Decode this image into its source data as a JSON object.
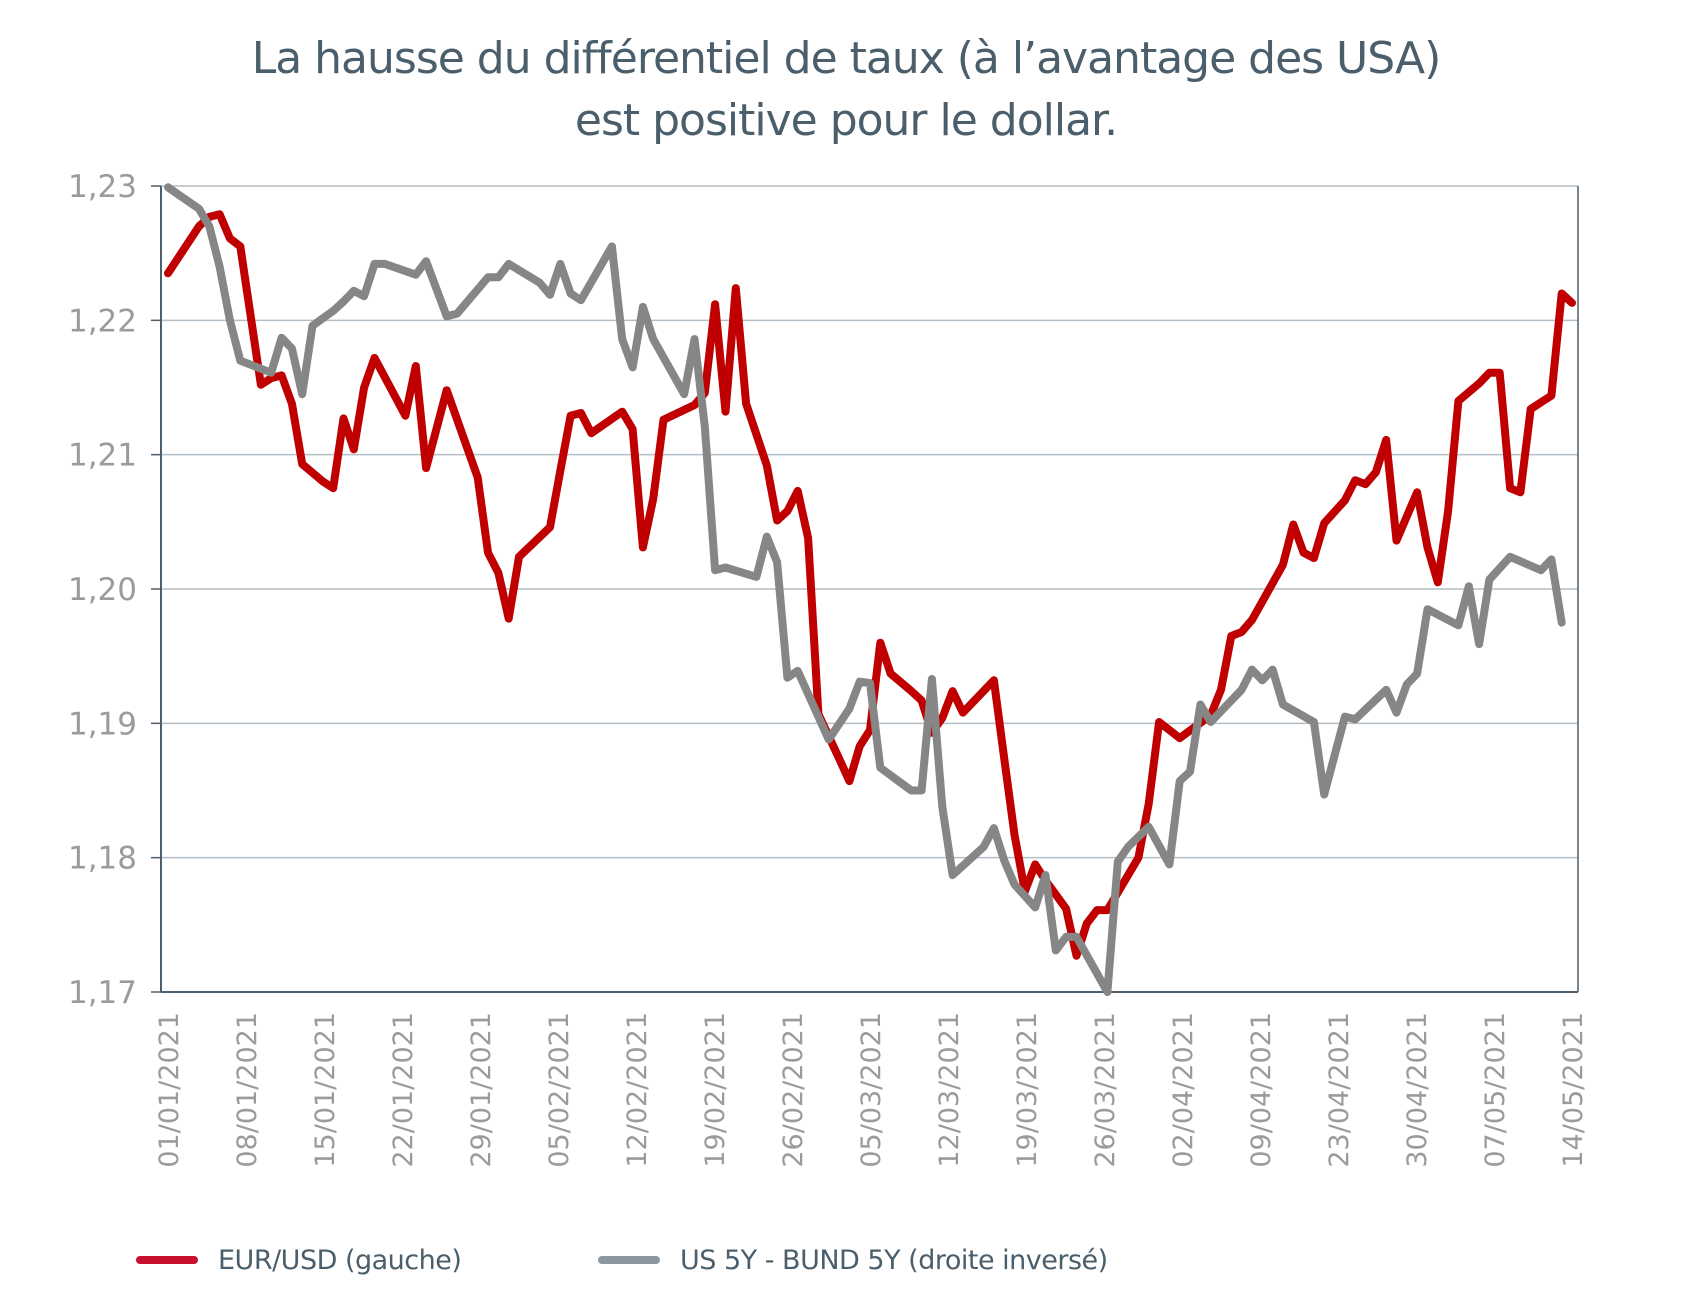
{
  "chart_data": {
    "type": "line",
    "title": "La hausse du différentiel de taux (à l’avantage des USA) est positive pour le dollar.",
    "title_lines": [
      "La hausse du différentiel de taux (à l’avantage des USA)",
      "est positive pour le dollar."
    ],
    "xlabel": "",
    "ylabel": "",
    "ylim": [
      1.17,
      1.23
    ],
    "y_ticks": [
      "1,23",
      "1,22",
      "1,21",
      "1,20",
      "1,19",
      "1,18",
      "1,17"
    ],
    "y_tick_values": [
      1.23,
      1.22,
      1.21,
      1.2,
      1.19,
      1.18,
      1.17
    ],
    "x_tick_labels": [
      "01/01/2021",
      "08/01/2021",
      "15/01/2021",
      "22/01/2021",
      "29/01/2021",
      "05/02/2021",
      "12/02/2021",
      "19/02/2021",
      "26/02/2021",
      "05/03/2021",
      "12/03/2021",
      "19/03/2021",
      "26/03/2021",
      "02/04/2021",
      "09/04/2021",
      "23/04/2021",
      "30/04/2021",
      "07/05/2021",
      "14/05/2021"
    ],
    "x_range_days": [
      0,
      133
    ],
    "grid": true,
    "legend_position": "bottom",
    "series": [
      {
        "name": "EUR/USD (gauche)",
        "color": "#c00000",
        "axis": "left",
        "points": [
          [
            0,
            1.2235
          ],
          [
            3,
            1.227
          ],
          [
            4,
            1.2277
          ],
          [
            5,
            1.2279
          ],
          [
            6,
            1.2261
          ],
          [
            7,
            1.2255
          ],
          [
            9,
            1.2152
          ],
          [
            10,
            1.2157
          ],
          [
            11,
            1.2159
          ],
          [
            12,
            1.2138
          ],
          [
            13,
            1.2093
          ],
          [
            15,
            1.208
          ],
          [
            16,
            1.2075
          ],
          [
            17,
            1.2127
          ],
          [
            18,
            1.2104
          ],
          [
            19,
            1.215
          ],
          [
            20,
            1.2172
          ],
          [
            23,
            1.2129
          ],
          [
            24,
            1.2166
          ],
          [
            25,
            1.209
          ],
          [
            27,
            1.2148
          ],
          [
            30,
            1.2083
          ],
          [
            31,
            1.2027
          ],
          [
            32,
            1.2012
          ],
          [
            33,
            1.1978
          ],
          [
            34,
            1.2024
          ],
          [
            37,
            1.2046
          ],
          [
            38,
            1.2088
          ],
          [
            39,
            1.2129
          ],
          [
            40,
            1.2131
          ],
          [
            41,
            1.2116
          ],
          [
            44,
            1.2132
          ],
          [
            45,
            1.2119
          ],
          [
            46,
            1.2031
          ],
          [
            47,
            1.2067
          ],
          [
            48,
            1.2126
          ],
          [
            51,
            1.2137
          ],
          [
            52,
            1.2146
          ],
          [
            53,
            1.2212
          ],
          [
            54,
            1.2132
          ],
          [
            55,
            1.2224
          ],
          [
            56,
            1.2138
          ],
          [
            58,
            1.2092
          ],
          [
            59,
            1.2051
          ],
          [
            60,
            1.2058
          ],
          [
            61,
            1.2073
          ],
          [
            62,
            1.2038
          ],
          [
            63,
            1.1907
          ],
          [
            65,
            1.1874
          ],
          [
            66,
            1.1857
          ],
          [
            67,
            1.1883
          ],
          [
            68,
            1.1895
          ],
          [
            69,
            1.196
          ],
          [
            70,
            1.1937
          ],
          [
            72,
            1.1924
          ],
          [
            73,
            1.1917
          ],
          [
            74,
            1.1893
          ],
          [
            75,
            1.1904
          ],
          [
            76,
            1.1924
          ],
          [
            77,
            1.1908
          ],
          [
            80,
            1.1932
          ],
          [
            81,
            1.1874
          ],
          [
            82,
            1.1817
          ],
          [
            83,
            1.1775
          ],
          [
            84,
            1.1795
          ],
          [
            85,
            1.1783
          ],
          [
            87,
            1.1762
          ],
          [
            88,
            1.1727
          ],
          [
            89,
            1.1751
          ],
          [
            90,
            1.1761
          ],
          [
            91,
            1.1761
          ],
          [
            94,
            1.18
          ],
          [
            95,
            1.184
          ],
          [
            96,
            1.1901
          ],
          [
            98,
            1.1889
          ],
          [
            101,
            1.1906
          ],
          [
            102,
            1.1925
          ],
          [
            103,
            1.1965
          ],
          [
            104,
            1.1968
          ],
          [
            105,
            1.1977
          ],
          [
            108,
            1.2018
          ],
          [
            109,
            1.2048
          ],
          [
            110,
            1.2027
          ],
          [
            111,
            1.2023
          ],
          [
            112,
            1.2049
          ],
          [
            114,
            1.2066
          ],
          [
            115,
            1.2081
          ],
          [
            116,
            1.2078
          ],
          [
            117,
            1.2087
          ],
          [
            118,
            1.2111
          ],
          [
            119,
            1.2036
          ],
          [
            121,
            1.2072
          ],
          [
            122,
            1.2031
          ],
          [
            123,
            1.2005
          ],
          [
            124,
            1.2058
          ],
          [
            125,
            1.214
          ],
          [
            127,
            1.2153
          ],
          [
            128,
            1.2161
          ],
          [
            129,
            1.2161
          ],
          [
            130,
            1.2075
          ],
          [
            131,
            1.2072
          ],
          [
            132,
            1.2134
          ],
          [
            134,
            1.2144
          ],
          [
            135,
            1.222
          ],
          [
            136,
            1.2213
          ]
        ]
      },
      {
        "name": "US 5Y - BUND 5Y (droite inversé)",
        "color": "#868686",
        "axis": "right-inverted",
        "points": [
          [
            0,
            1.2299
          ],
          [
            3,
            1.2283
          ],
          [
            4,
            1.227
          ],
          [
            5,
            1.224
          ],
          [
            6,
            1.22
          ],
          [
            7,
            1.217
          ],
          [
            9,
            1.2164
          ],
          [
            10,
            1.2161
          ],
          [
            11,
            1.2187
          ],
          [
            12,
            1.2179
          ],
          [
            13,
            1.2145
          ],
          [
            14,
            1.2196
          ],
          [
            16,
            1.2207
          ],
          [
            17,
            1.2214
          ],
          [
            18,
            1.2222
          ],
          [
            19,
            1.2218
          ],
          [
            20,
            1.2242
          ],
          [
            21,
            1.2242
          ],
          [
            24,
            1.2234
          ],
          [
            25,
            1.2244
          ],
          [
            27,
            1.2203
          ],
          [
            28,
            1.2205
          ],
          [
            31,
            1.2232
          ],
          [
            32,
            1.2232
          ],
          [
            33,
            1.2242
          ],
          [
            36,
            1.2228
          ],
          [
            37,
            1.2219
          ],
          [
            38,
            1.2242
          ],
          [
            39,
            1.222
          ],
          [
            40,
            1.2215
          ],
          [
            43,
            1.2255
          ],
          [
            44,
            1.2186
          ],
          [
            45,
            1.2165
          ],
          [
            46,
            1.221
          ],
          [
            47,
            1.2186
          ],
          [
            50,
            1.2145
          ],
          [
            51,
            1.2186
          ],
          [
            52,
            1.2121
          ],
          [
            53,
            1.2014
          ],
          [
            54,
            1.2016
          ],
          [
            57,
            1.2009
          ],
          [
            58,
            1.2039
          ],
          [
            59,
            1.202
          ],
          [
            60,
            1.1934
          ],
          [
            61,
            1.1939
          ],
          [
            64,
            1.1888
          ],
          [
            66,
            1.1911
          ],
          [
            67,
            1.1931
          ],
          [
            68,
            1.193
          ],
          [
            69,
            1.1867
          ],
          [
            72,
            1.185
          ],
          [
            73,
            1.185
          ],
          [
            74,
            1.1933
          ],
          [
            75,
            1.1838
          ],
          [
            76,
            1.1787
          ],
          [
            79,
            1.1808
          ],
          [
            80,
            1.1822
          ],
          [
            81,
            1.1798
          ],
          [
            82,
            1.178
          ],
          [
            84,
            1.1763
          ],
          [
            85,
            1.1787
          ],
          [
            86,
            1.1731
          ],
          [
            87,
            1.1741
          ],
          [
            88,
            1.1741
          ],
          [
            91,
            1.17
          ],
          [
            92,
            1.1797
          ],
          [
            93,
            1.1808
          ],
          [
            95,
            1.1823
          ],
          [
            97,
            1.1795
          ],
          [
            98,
            1.1857
          ],
          [
            99,
            1.1864
          ],
          [
            100,
            1.1914
          ],
          [
            101,
            1.1901
          ],
          [
            104,
            1.1925
          ],
          [
            105,
            1.194
          ],
          [
            106,
            1.1932
          ],
          [
            107,
            1.194
          ],
          [
            108,
            1.1914
          ],
          [
            111,
            1.1901
          ],
          [
            112,
            1.1847
          ],
          [
            114,
            1.1905
          ],
          [
            115,
            1.1903
          ],
          [
            118,
            1.1925
          ],
          [
            119,
            1.1908
          ],
          [
            120,
            1.1929
          ],
          [
            121,
            1.1937
          ],
          [
            122,
            1.1985
          ],
          [
            125,
            1.1973
          ],
          [
            126,
            1.2002
          ],
          [
            127,
            1.1959
          ],
          [
            128,
            1.2007
          ],
          [
            130,
            1.2024
          ],
          [
            133,
            1.2014
          ],
          [
            134,
            1.2022
          ],
          [
            135,
            1.1975
          ]
        ]
      }
    ]
  }
}
